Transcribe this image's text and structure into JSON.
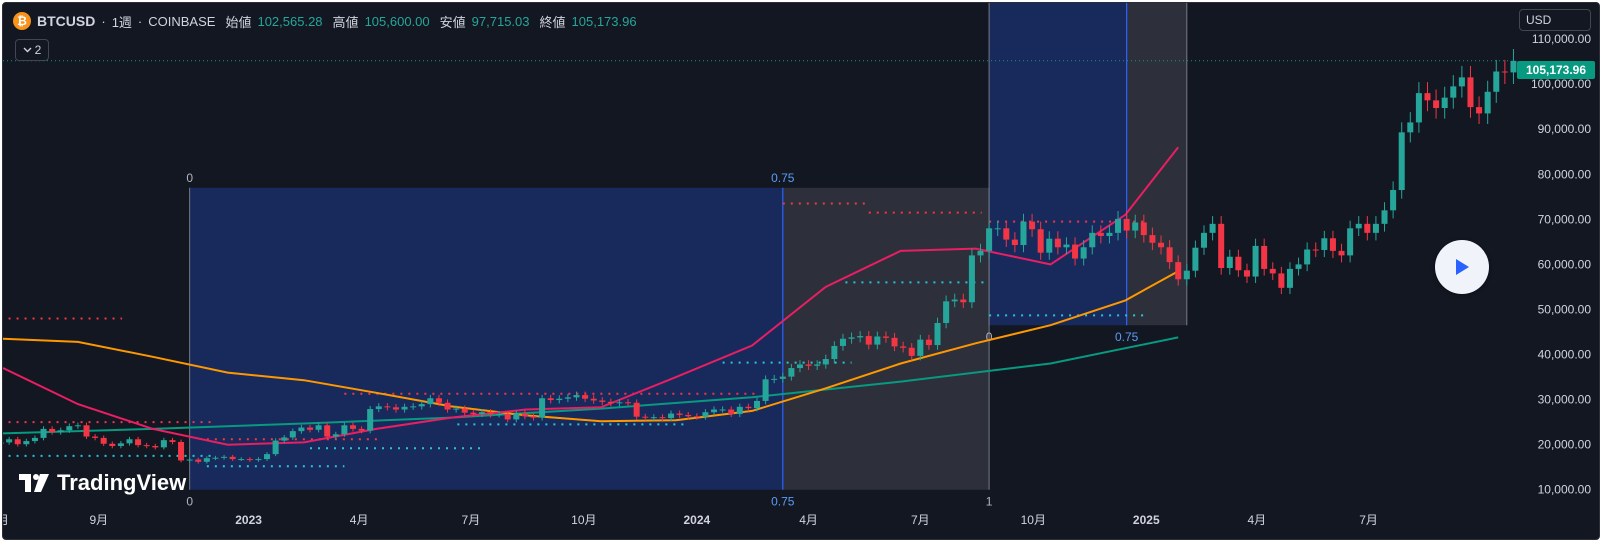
{
  "header": {
    "symbol": "BTCUSD",
    "interval": "1週",
    "exchange": "COINBASE",
    "open_label": "始値",
    "open_value": "102,565.28",
    "high_label": "高値",
    "high_value": "105,600.00",
    "low_label": "安値",
    "low_value": "97,715.03",
    "close_label": "終値",
    "close_value": "105,173.96"
  },
  "indicator_toggle": {
    "count": "2"
  },
  "currency_button": {
    "label": "USD"
  },
  "current_price": {
    "label": "105,173.96",
    "value": 105173.96
  },
  "logo": {
    "text": "TradingView"
  },
  "colors": {
    "background": "#131722",
    "up": "#26a69a",
    "down": "#f23645",
    "ma_short": "#e91e63",
    "ma_mid": "#ff9800",
    "ma_long": "#089981",
    "fib_zone": "#1e3a8a",
    "fib_zone2": "#434651",
    "fib_line": "#2962ff"
  },
  "chart_data": {
    "type": "candlestick",
    "y_axis": {
      "ticks": [
        10000,
        20000,
        30000,
        40000,
        50000,
        60000,
        70000,
        80000,
        90000,
        100000,
        110000
      ],
      "tick_labels": [
        "10,000.00",
        "20,000.00",
        "30,000.00",
        "40,000.00",
        "50,000.00",
        "60,000.00",
        "70,000.00",
        "80,000.00",
        "90,000.00",
        "100,000.00",
        "110,000.00"
      ],
      "ylim": [
        7500,
        118000
      ]
    },
    "x_axis": {
      "tick_labels": [
        {
          "label": "月",
          "date": "2022-06-15",
          "bold": false
        },
        {
          "label": "9月",
          "date": "2022-09-01",
          "bold": false
        },
        {
          "label": "2023",
          "date": "2023-01-01",
          "bold": true
        },
        {
          "label": "4月",
          "date": "2023-04-01",
          "bold": false
        },
        {
          "label": "7月",
          "date": "2023-07-01",
          "bold": false
        },
        {
          "label": "10月",
          "date": "2023-10-01",
          "bold": false
        },
        {
          "label": "2024",
          "date": "2024-01-01",
          "bold": true
        },
        {
          "label": "4月",
          "date": "2024-04-01",
          "bold": false
        },
        {
          "label": "7月",
          "date": "2024-07-01",
          "bold": false
        },
        {
          "label": "10月",
          "date": "2024-10-01",
          "bold": false
        },
        {
          "label": "2025",
          "date": "2025-01-01",
          "bold": true
        },
        {
          "label": "4月",
          "date": "2025-04-01",
          "bold": false
        },
        {
          "label": "7月",
          "date": "2025-07-01",
          "bold": false
        }
      ],
      "xlim": [
        "2022-06-15",
        "2025-10-25"
      ]
    },
    "series": {
      "candles": {
        "start_date": "2022-06-13",
        "weekly_close": [
          20500,
          21200,
          20100,
          20800,
          21500,
          23500,
          22800,
          23200,
          24100,
          24300,
          21800,
          21500,
          20200,
          19700,
          20300,
          21200,
          19900,
          19700,
          19400,
          21000,
          20600,
          16500,
          16700,
          16200,
          17000,
          17100,
          17300,
          16800,
          16800,
          16600,
          16800,
          17900,
          20900,
          21600,
          23000,
          23800,
          23300,
          24300,
          21800,
          22300,
          24300,
          23500,
          23100,
          27900,
          28500,
          28300,
          27800,
          28400,
          28500,
          29000,
          30300,
          29300,
          27800,
          28000,
          27100,
          26800,
          27200,
          26700,
          26800,
          25600,
          26900,
          26300,
          26000,
          30300,
          29900,
          30200,
          30500,
          31000,
          30200,
          29800,
          29500,
          29200,
          29400,
          29300,
          26200,
          26000,
          26100,
          25900,
          26900,
          26600,
          26300,
          26200,
          27200,
          27800,
          27800,
          26800,
          28400,
          28100,
          29700,
          34500,
          34600,
          35100,
          37000,
          37800,
          37500,
          37800,
          39000,
          41900,
          43500,
          43800,
          44100,
          42200,
          44000,
          43700,
          41800,
          41500,
          39700,
          43300,
          42100,
          47000,
          51800,
          52200,
          51600,
          62000,
          63000,
          68000,
          68000,
          65500,
          64300,
          69500,
          67800,
          62600,
          65700,
          63800,
          64400,
          61300,
          63800,
          67000,
          66300,
          67000,
          70100,
          67500,
          69300,
          66500,
          64800,
          63800,
          60500,
          56700,
          58600,
          63700,
          67000,
          69000,
          59200,
          61700,
          58700,
          57300,
          64100,
          59000,
          58000,
          54800,
          59000,
          60000,
          63300,
          63200,
          65800,
          63000,
          62000,
          68000,
          69000,
          67000,
          69000,
          72000,
          76500,
          89300,
          91500,
          98000,
          96400,
          94700,
          97000,
          99500,
          101500,
          94900,
          93500,
          98300,
          102800,
          102600,
          105174
        ],
        "note": "Weekly closes for BTCUSD (COINBASE), June 2022 – January 2025; open of each candle is the previous close."
      },
      "ma_short": [
        [
          "2022-06-15",
          37000
        ],
        [
          "2022-08-15",
          29000
        ],
        [
          "2022-10-15",
          23500
        ],
        [
          "2022-12-15",
          20000
        ],
        [
          "2023-02-15",
          20500
        ],
        [
          "2023-04-15",
          23500
        ],
        [
          "2023-06-15",
          26000
        ],
        [
          "2023-08-15",
          27800
        ],
        [
          "2023-10-15",
          28300
        ],
        [
          "2023-12-15",
          35000
        ],
        [
          "2024-02-15",
          42000
        ],
        [
          "2024-04-15",
          55000
        ],
        [
          "2024-06-15",
          63000
        ],
        [
          "2024-08-15",
          63500
        ],
        [
          "2024-10-15",
          60000
        ],
        [
          "2024-12-15",
          71000
        ],
        [
          "2025-01-27",
          86000
        ]
      ],
      "ma_mid": [
        [
          "2022-06-15",
          43500
        ],
        [
          "2022-08-15",
          42800
        ],
        [
          "2022-10-15",
          39500
        ],
        [
          "2022-12-15",
          36000
        ],
        [
          "2023-02-15",
          34300
        ],
        [
          "2023-04-15",
          31500
        ],
        [
          "2023-06-15",
          28500
        ],
        [
          "2023-08-15",
          26500
        ],
        [
          "2023-10-15",
          25200
        ],
        [
          "2023-12-15",
          25400
        ],
        [
          "2024-02-15",
          27500
        ],
        [
          "2024-04-15",
          32500
        ],
        [
          "2024-06-15",
          38000
        ],
        [
          "2024-08-15",
          42500
        ],
        [
          "2024-10-15",
          46500
        ],
        [
          "2024-12-15",
          52000
        ],
        [
          "2025-01-27",
          58500
        ]
      ],
      "ma_long": [
        [
          "2022-06-15",
          22500
        ],
        [
          "2022-10-15",
          23500
        ],
        [
          "2023-02-15",
          24700
        ],
        [
          "2023-06-15",
          26000
        ],
        [
          "2023-10-15",
          28000
        ],
        [
          "2024-02-15",
          30500
        ],
        [
          "2024-06-15",
          34000
        ],
        [
          "2024-10-15",
          38000
        ],
        [
          "2025-01-27",
          43800
        ]
      ]
    },
    "annotations": [
      {
        "type": "fib_zone",
        "x_start": "2022-11-14",
        "x_mid": "2024-03-11",
        "x_end": "2024-08-26",
        "y_bottom": 10000,
        "y_top": 77000,
        "labels": {
          "top_start": "0",
          "top_mid": "0.75",
          "bottom_start": "0",
          "bottom_mid": "0.75",
          "bottom_end": "1"
        }
      },
      {
        "type": "fib_zone",
        "x_start": "2024-08-26",
        "x_mid": "2024-12-16",
        "x_end": "2025-02-03",
        "y_bottom": 46500,
        "y_top": 118000,
        "labels": {
          "top_start": "0",
          "top_mid": "0.75",
          "bottom_start": "0",
          "bottom_mid": "0.75"
        }
      }
    ],
    "dotted_levels": [
      {
        "color": "#f23645",
        "y": 48000,
        "x": [
          "2022-06-13",
          "2022-09-20"
        ]
      },
      {
        "color": "#f23645",
        "y": 25000,
        "x": [
          "2022-06-13",
          "2022-12-05"
        ]
      },
      {
        "color": "#26c6da",
        "y": 17500,
        "x": [
          "2022-06-13",
          "2022-12-05"
        ]
      },
      {
        "color": "#f23645",
        "y": 21200,
        "x": [
          "2022-11-28",
          "2023-04-20"
        ]
      },
      {
        "color": "#26c6da",
        "y": 15200,
        "x": [
          "2022-11-28",
          "2023-03-20"
        ]
      },
      {
        "color": "#26c6da",
        "y": 19200,
        "x": [
          "2023-02-20",
          "2023-07-10"
        ]
      },
      {
        "color": "#f23645",
        "y": 31300,
        "x": [
          "2023-03-20",
          "2024-02-20"
        ]
      },
      {
        "color": "#26c6da",
        "y": 24500,
        "x": [
          "2023-06-20",
          "2023-12-25"
        ]
      },
      {
        "color": "#f23645",
        "y": 73500,
        "x": [
          "2024-03-11",
          "2024-05-20"
        ]
      },
      {
        "color": "#f23645",
        "y": 71500,
        "x": [
          "2024-05-20",
          "2024-08-20"
        ]
      },
      {
        "color": "#26c6da",
        "y": 38200,
        "x": [
          "2024-01-22",
          "2024-05-06"
        ]
      },
      {
        "color": "#26c6da",
        "y": 56000,
        "x": [
          "2024-05-01",
          "2024-08-26"
        ]
      },
      {
        "color": "#f23645",
        "y": 69500,
        "x": [
          "2024-08-26",
          "2024-12-30"
        ]
      },
      {
        "color": "#26c6da",
        "y": 48700,
        "x": [
          "2024-08-26",
          "2024-12-30"
        ]
      }
    ]
  }
}
